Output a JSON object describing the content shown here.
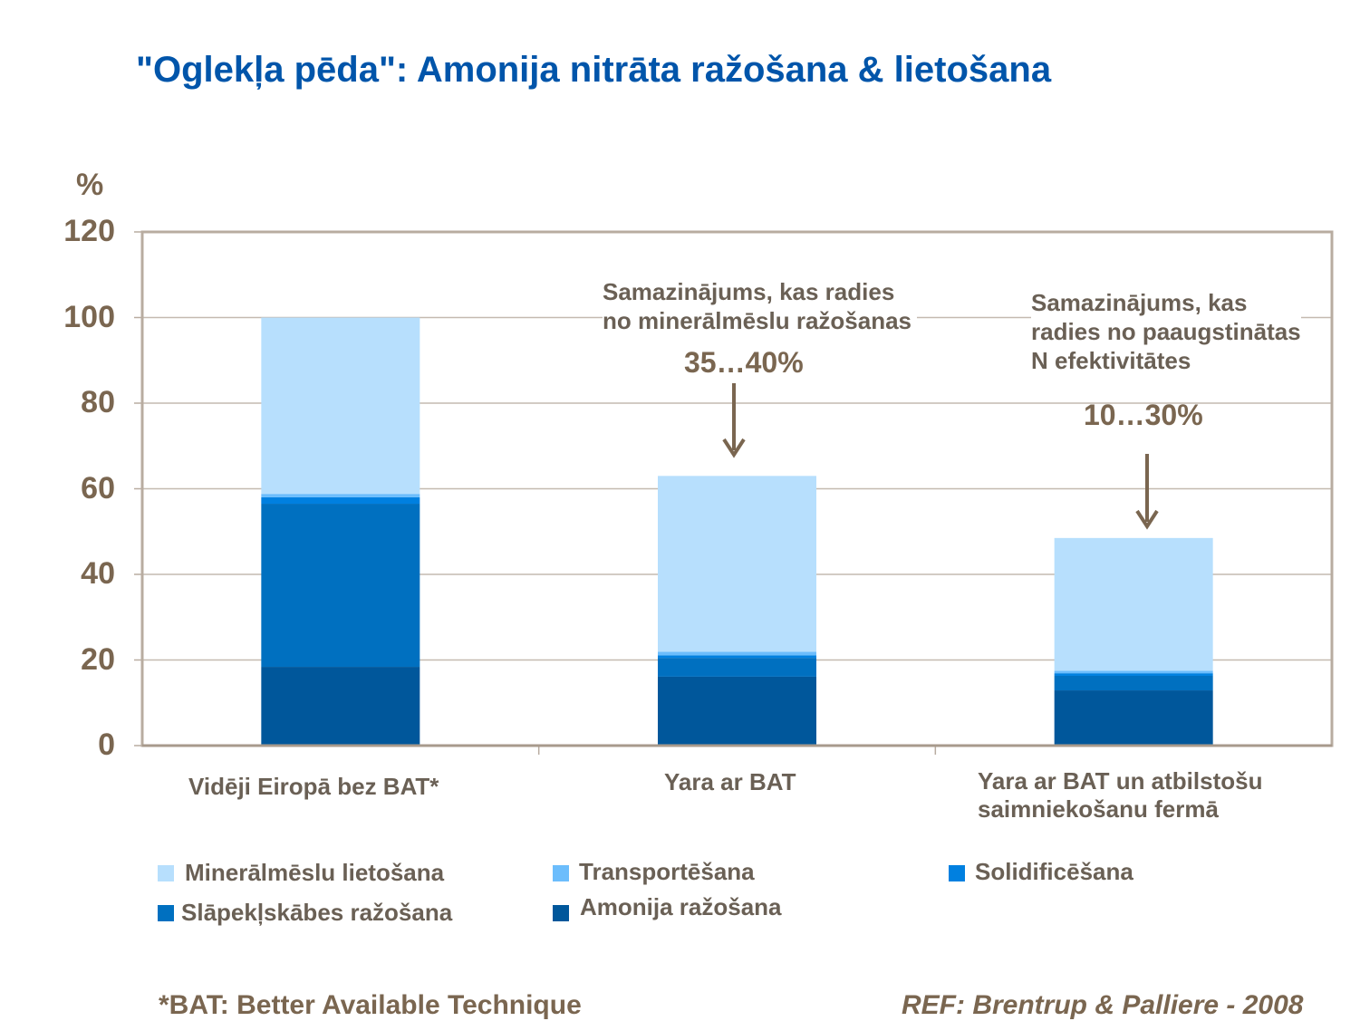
{
  "title": "\"Oglekļa pēda\": Amonija nitrāta ražošana & lietošana",
  "chart_data": {
    "type": "bar",
    "stacked": true,
    "title": "\"Oglekļa pēda\": Amonija nitrāta ražošana & lietošana",
    "ylabel": "%",
    "ylim": [
      0,
      120
    ],
    "yticks": [
      "0",
      "20",
      "40",
      "60",
      "80",
      "100",
      "120"
    ],
    "grid": true,
    "legend_placement": "bottom",
    "categories": [
      "Vidēji Eiropā bez BAT*",
      "Yara ar BAT",
      "Yara ar BAT un atbilstošu saimniekošanu fermā"
    ],
    "series": [
      {
        "name": "Amonija ražošana",
        "color": "#00579b",
        "values": [
          18.4,
          16.1,
          12.9
        ]
      },
      {
        "name": "Slāpekļskābes ražošana",
        "color": "#0070c0",
        "values": [
          38.1,
          4.4,
          3.4
        ]
      },
      {
        "name": "Solidificēšana",
        "color": "#0080e0",
        "values": [
          1.5,
          0.6,
          0.6
        ]
      },
      {
        "name": "Transportēšana",
        "color": "#6cbdfc",
        "values": [
          0.8,
          0.8,
          0.6
        ]
      },
      {
        "name": "Minerālmēslu lietošana",
        "color": "#b7dffd",
        "values": [
          41.2,
          41.1,
          31.0
        ]
      }
    ],
    "annotations": [
      {
        "text": "Samazinājums, kas radies no minerālmēslu ražošanas",
        "value": "35…40%"
      },
      {
        "text": "Samazinājums, kas radies no paaugstinātas N efektivitātes",
        "value": "10…30%"
      }
    ]
  },
  "annotation_lines": [
    [
      "Samazinājums, kas radies",
      "no minerālmēslu ražošanas"
    ],
    [
      "Samazinājums, kas",
      "radies no paaugstinātas",
      "N efektivitātes"
    ]
  ],
  "category_lines": [
    [
      "Vidēji Eiropā bez BAT*"
    ],
    [
      "Yara ar BAT"
    ],
    [
      "Yara ar BAT un atbilstošu",
      "saimniekošanu fermā"
    ]
  ],
  "footnote": "*BAT: Better Available Technique",
  "reference": "REF: Brentrup & Palliere - 2008",
  "colors": {
    "title": "#0055aa",
    "text": "#7a6650",
    "frame": "#b8aca0"
  }
}
